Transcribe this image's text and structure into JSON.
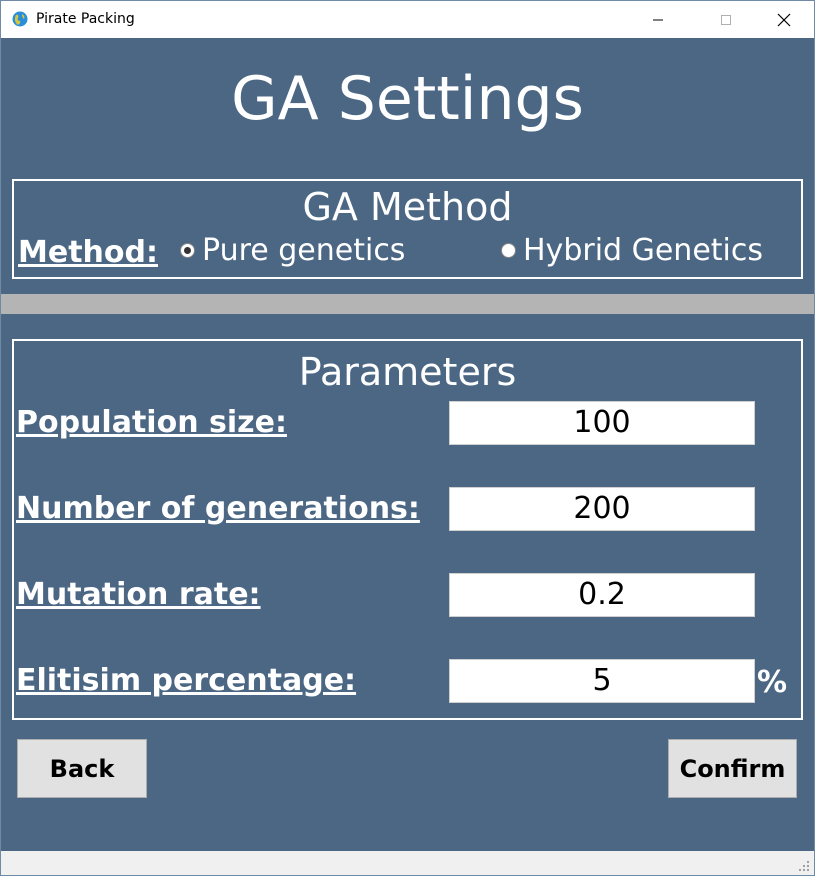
{
  "window": {
    "title": "Pirate Packing",
    "controls": {
      "minimize_icon": "minimize-icon",
      "maximize_icon": "maximize-icon",
      "close_icon": "close-icon"
    }
  },
  "page": {
    "title": "GA Settings"
  },
  "method_section": {
    "title": "GA Method",
    "label": "Method:",
    "options": [
      {
        "label": "Pure genetics",
        "selected": true
      },
      {
        "label": "Hybrid Genetics",
        "selected": false
      }
    ]
  },
  "parameters_section": {
    "title": "Parameters",
    "fields": [
      {
        "label": "Population size:",
        "value": "100"
      },
      {
        "label": "Number of generations:",
        "value": "200"
      },
      {
        "label": "Mutation rate:",
        "value": "0.2"
      },
      {
        "label": "Elitisim percentage:",
        "value": "5",
        "unit": "%"
      }
    ]
  },
  "buttons": {
    "back": "Back",
    "confirm": "Confirm"
  },
  "colors": {
    "background": "#4b6784",
    "divider": "#b4b4b4",
    "button": "#e1e1e1"
  }
}
